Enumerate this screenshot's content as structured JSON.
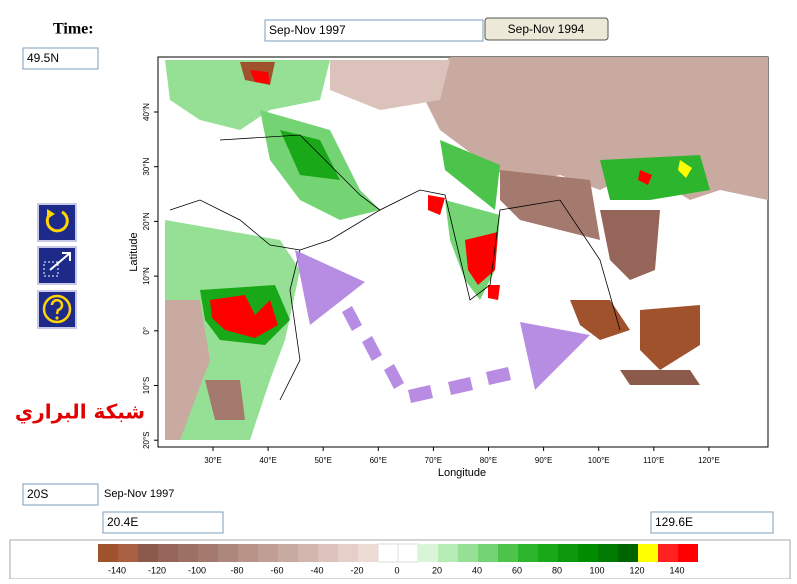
{
  "header": {
    "label": "Time:",
    "period_input": "Sep-Nov 1997",
    "compare_button": "Sep-Nov 1994"
  },
  "lat_max_input": "49.5N",
  "map": {
    "lat_labels": [
      "40°N",
      "30°N",
      "20°N",
      "10°N",
      "0°",
      "10°S",
      "20°S"
    ],
    "lon_labels": [
      "30°E",
      "40°E",
      "50°E",
      "60°E",
      "70°E",
      "80°E",
      "90°E",
      "100°E",
      "110°E",
      "120°E"
    ],
    "xlabel": "Longitude",
    "ylabel": "Latitude",
    "watermark": "شبكة البراري"
  },
  "footer": {
    "lat_min_input": "20S",
    "period": "Sep-Nov 1997",
    "lon_min_input": "20.4E",
    "lon_max_input": "129.6E"
  },
  "colorbar": {
    "ticks": [
      -140,
      -120,
      -100,
      -80,
      -60,
      -40,
      -20,
      0,
      20,
      40,
      60,
      80,
      100,
      120,
      140
    ],
    "colors": [
      "#a0522d",
      "#a95f42",
      "#8b5a4a",
      "#946558",
      "#9c7062",
      "#a57a6e",
      "#ae877c",
      "#b89488",
      "#c09e94",
      "#c9aaa0",
      "#d2b6ad",
      "#dbc3bb",
      "#e4d0c9",
      "#eddcd6",
      "#ffffff",
      "#ffffff",
      "#d8f5d8",
      "#b6ebb6",
      "#96e096",
      "#74d474",
      "#4cc44c",
      "#2eb52e",
      "#18a818",
      "#0c9a0c",
      "#008c00",
      "#007a00",
      "#006400",
      "#ffff00",
      "#ff2020",
      "#ff0000"
    ]
  }
}
